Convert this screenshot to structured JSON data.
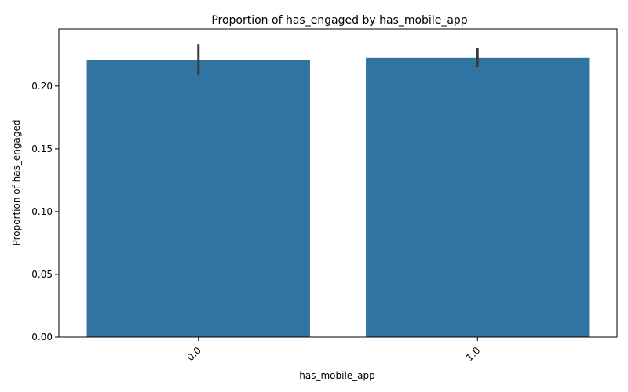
{
  "chart_data": {
    "type": "bar",
    "title": "Proportion of has_engaged by has_mobile_app",
    "xlabel": "has_mobile_app",
    "ylabel": "Proportion of has_engaged",
    "categories": [
      "0.0",
      "1.0"
    ],
    "values": [
      0.221,
      0.2225
    ],
    "error_low": [
      0.2085,
      0.2148
    ],
    "error_high": [
      0.2335,
      0.2305
    ],
    "ylim": [
      0,
      0.2455
    ],
    "yticks": [
      0.0,
      0.05,
      0.1,
      0.15,
      0.2
    ],
    "ytick_labels": [
      "0.00",
      "0.05",
      "0.10",
      "0.15",
      "0.20"
    ],
    "bar_color": "#3274a1",
    "errorbar_color": "#3b3b3b",
    "grid": false,
    "legend": "none"
  }
}
